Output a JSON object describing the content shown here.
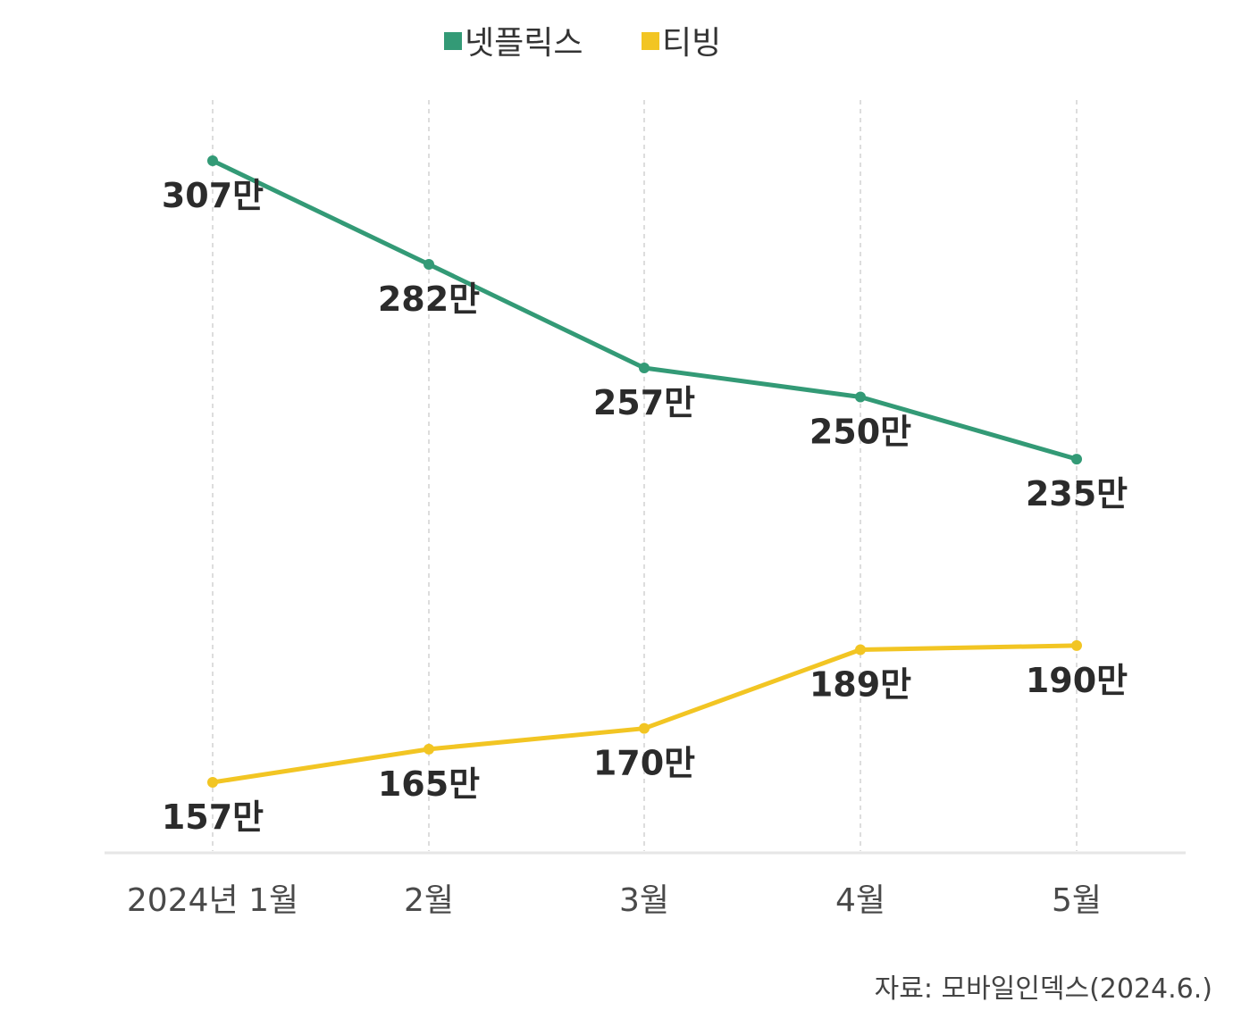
{
  "chart_data": {
    "type": "line",
    "categories": [
      "2024년 1월",
      "2월",
      "3월",
      "4월",
      "5월"
    ],
    "series": [
      {
        "name": "넷플릭스",
        "color": "#339a76",
        "values": [
          307,
          282,
          257,
          250,
          235
        ],
        "labels": [
          "307만",
          "282만",
          "257만",
          "250만",
          "235만"
        ]
      },
      {
        "name": "티빙",
        "color": "#f2c523",
        "values": [
          157,
          165,
          170,
          189,
          190
        ],
        "labels": [
          "157만",
          "165만",
          "170만",
          "189만",
          "190만"
        ]
      }
    ],
    "ylim": [
      150,
      310
    ],
    "grid": "vertical-dashed",
    "legend_position": "top-center",
    "source": "자료: 모바일인덱스(2024.6.)"
  }
}
